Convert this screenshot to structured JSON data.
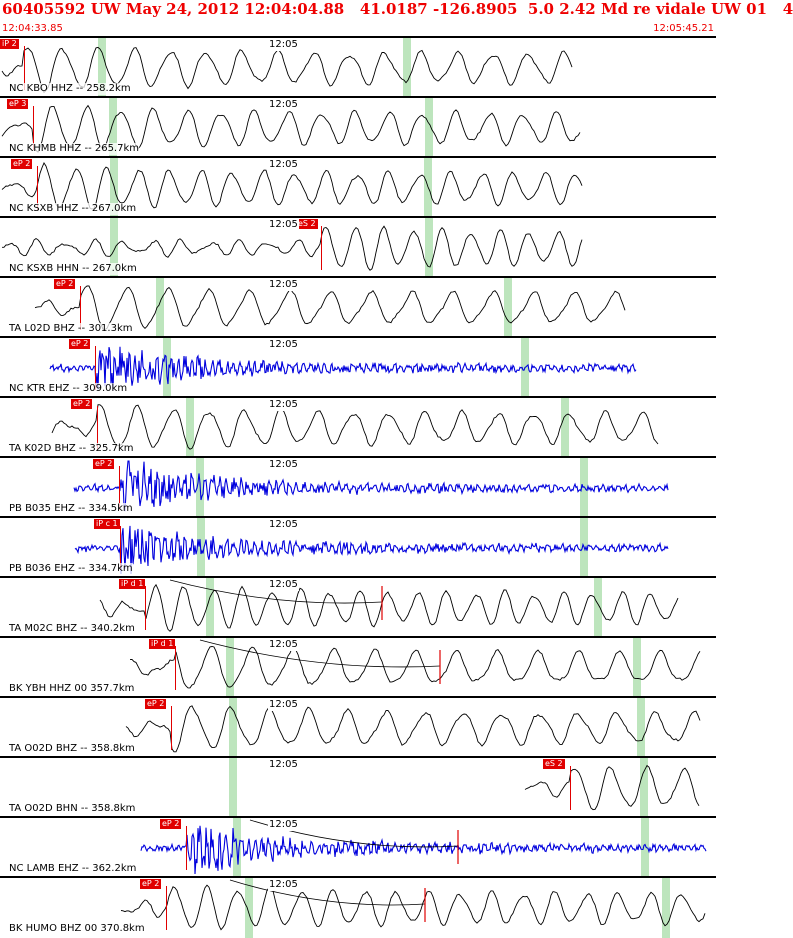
{
  "header": {
    "title": "60405592 UW May 24, 2012 12:04:04.88   41.0187 -126.8905  5.0 2.42 Md re vidale UW 01   4",
    "start_time": "12:04:33.85",
    "end_time": "12:05:45.21"
  },
  "colors": {
    "header_text": "#ee0000",
    "pick": "#e00000",
    "trace_broadband": "#000000",
    "trace_short_period": "#0000dd",
    "window_band": "#bde5bd",
    "divider": "#000000"
  },
  "panels": [
    {
      "station": "NC KBO HHZ -- 258.2km",
      "time_label": "12:05",
      "pick_label": "iP 2",
      "trace": "broadband"
    },
    {
      "station": "NC KHMB HHZ -- 265.7km",
      "time_label": "12:05",
      "pick_label": "eP 3",
      "trace": "broadband"
    },
    {
      "station": "NC KSXB HHZ -- 267.0km",
      "time_label": "12:05",
      "pick_label": "eP 2",
      "trace": "broadband"
    },
    {
      "station": "NC KSXB HHN -- 267.0km",
      "time_label": "12:05",
      "pick_label": "eS 2",
      "trace": "broadband"
    },
    {
      "station": "TA L02D BHZ -- 301.3km",
      "time_label": "12:05",
      "pick_label": "eP 2",
      "trace": "broadband"
    },
    {
      "station": "NC KTR EHZ -- 309.0km",
      "time_label": "12:05",
      "pick_label": "eP 2",
      "trace": "short_period"
    },
    {
      "station": "TA K02D BHZ -- 325.7km",
      "time_label": "12:05",
      "pick_label": "eP 2",
      "trace": "broadband"
    },
    {
      "station": "PB B035 EHZ -- 334.5km",
      "time_label": "12:05",
      "pick_label": "eP 2",
      "trace": "short_period"
    },
    {
      "station": "PB B036 EHZ -- 334.7km",
      "time_label": "12:05",
      "pick_label": "iP c 1",
      "trace": "short_period"
    },
    {
      "station": "TA M02C BHZ -- 340.2km",
      "time_label": "12:05",
      "pick_label": "iP d 1",
      "trace": "broadband"
    },
    {
      "station": "BK YBH HHZ 00 357.7km",
      "time_label": "12:05",
      "pick_label": "iP d 1",
      "trace": "broadband"
    },
    {
      "station": "TA O02D BHZ -- 358.8km",
      "time_label": "12:05",
      "pick_label": "eP 2",
      "trace": "broadband"
    },
    {
      "station": "TA O02D BHN -- 358.8km",
      "time_label": "12:05",
      "pick_label": "eS 2",
      "trace": "broadband"
    },
    {
      "station": "NC LAMB EHZ -- 362.2km",
      "time_label": "12:05",
      "pick_label": "eP 2",
      "trace": "short_period"
    },
    {
      "station": "BK HUMO BHZ 00 370.8km",
      "time_label": "12:05",
      "pick_label": "eP 2",
      "trace": "broadband"
    }
  ]
}
